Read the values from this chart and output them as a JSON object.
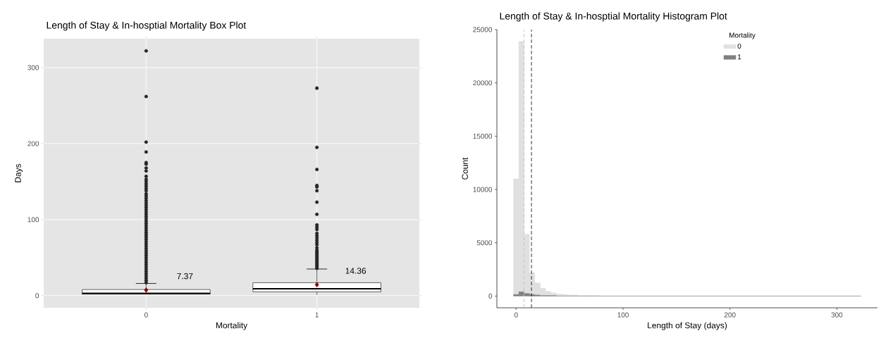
{
  "chart_data": [
    {
      "type": "box",
      "title": "Length of Stay & In-hosptial Mortality Box Plot",
      "xlabel": "Mortality",
      "ylabel": "Days",
      "categories": [
        "0",
        "1"
      ],
      "boxes": [
        {
          "low": 2,
          "q1": 2,
          "median": 3,
          "q3": 8,
          "high": 16,
          "mean": 7.37,
          "outliers": [
            17,
            20,
            23,
            26,
            29,
            32,
            35,
            38,
            41,
            44,
            47,
            50,
            53,
            56,
            59,
            62,
            65,
            68,
            71,
            74,
            77,
            80,
            83,
            86,
            89,
            92,
            95,
            98,
            101,
            104,
            107,
            110,
            113,
            116,
            119,
            122,
            125,
            128,
            131,
            134,
            138,
            141,
            144,
            147,
            150,
            153,
            157,
            164,
            168,
            173,
            175,
            189,
            202,
            262,
            322
          ]
        },
        {
          "low": 1,
          "q1": 5,
          "median": 9,
          "q3": 17,
          "high": 35,
          "mean": 14.36,
          "outliers": [
            36,
            38,
            40,
            42,
            44,
            46,
            48,
            50,
            52,
            54,
            56,
            58,
            60,
            63,
            67,
            70,
            73,
            76,
            79,
            82,
            87,
            90,
            93,
            107,
            123,
            138,
            143,
            145,
            166,
            195,
            273
          ]
        }
      ],
      "ylim": [
        -16,
        338
      ],
      "yticks": [
        0,
        100,
        200,
        300
      ],
      "grid": true,
      "annotations": [
        "7.37",
        "14.36"
      ]
    },
    {
      "type": "histogram",
      "title": "Length of Stay & In-hosptial Mortality Histogram Plot",
      "xlabel": "Length of Stay (days)",
      "ylabel": "Count",
      "legend_title": "Mortality",
      "bins": [
        -2.5,
        2.5,
        7.5,
        12.5,
        17.5,
        22.5,
        27.5,
        32.5,
        37.5,
        42.5,
        47.5,
        52.5,
        57.5,
        62.5,
        67.5,
        72.5,
        77.5,
        82.5,
        87.5,
        92.5,
        97.5,
        102.5,
        107.5,
        112.5,
        117.5,
        122.5,
        127.5,
        132.5,
        137.5,
        142.5,
        147.5,
        152.5,
        157.5,
        162.5,
        167.5,
        172.5,
        177.5,
        182.5,
        187.5,
        192.5,
        197.5,
        202.5,
        207.5,
        212.5,
        217.5,
        222.5,
        227.5,
        232.5,
        237.5,
        242.5,
        247.5,
        252.5,
        257.5,
        262.5,
        267.5,
        272.5,
        277.5,
        282.5,
        287.5,
        292.5,
        297.5,
        302.5,
        307.5,
        312.5,
        317.5,
        322.5
      ],
      "series": [
        {
          "name": "0",
          "color": "#e0e0e0",
          "values": [
            11000,
            23900,
            5800,
            2200,
            1250,
            750,
            450,
            300,
            200,
            150,
            100,
            100,
            50,
            50,
            50,
            50,
            0,
            0,
            0,
            0,
            0,
            0,
            0,
            0,
            0,
            0,
            0,
            0,
            0,
            0,
            0,
            0,
            0,
            0,
            0,
            0,
            0,
            0,
            0,
            0,
            0,
            0,
            0,
            0,
            0,
            0,
            0,
            0,
            0,
            0,
            0,
            0,
            0,
            0,
            0,
            0,
            0,
            0,
            0,
            0,
            0,
            0,
            0,
            0,
            0
          ]
        },
        {
          "name": "1",
          "color": "#808080",
          "values": [
            150,
            400,
            250,
            150,
            100,
            50,
            50,
            50,
            0,
            0,
            0,
            0,
            0,
            0,
            0,
            0,
            0,
            0,
            0,
            0,
            0,
            0,
            0,
            0,
            0,
            0,
            0,
            0,
            0,
            0,
            0,
            0,
            0,
            0,
            0,
            0,
            0,
            0,
            0,
            0,
            0,
            0,
            0,
            0,
            0,
            0,
            0,
            0,
            0,
            0,
            0,
            0,
            0,
            0,
            0,
            0,
            0,
            0,
            0,
            0,
            0,
            0,
            0,
            0,
            0
          ]
        }
      ],
      "xlim": [
        -18,
        338
      ],
      "xticks": [
        0,
        100,
        200,
        300
      ],
      "ylim": [
        -1100,
        25000
      ],
      "yticks": [
        0,
        5000,
        10000,
        15000,
        20000,
        25000
      ],
      "grid": false,
      "legend": "top right",
      "ref_lines": [
        {
          "axis": "x",
          "value": 7.37,
          "color": "#bdbdbd",
          "line_style": "dashed"
        },
        {
          "axis": "x",
          "value": 14.36,
          "color": "#000000",
          "line_style": "dashed"
        }
      ]
    }
  ]
}
